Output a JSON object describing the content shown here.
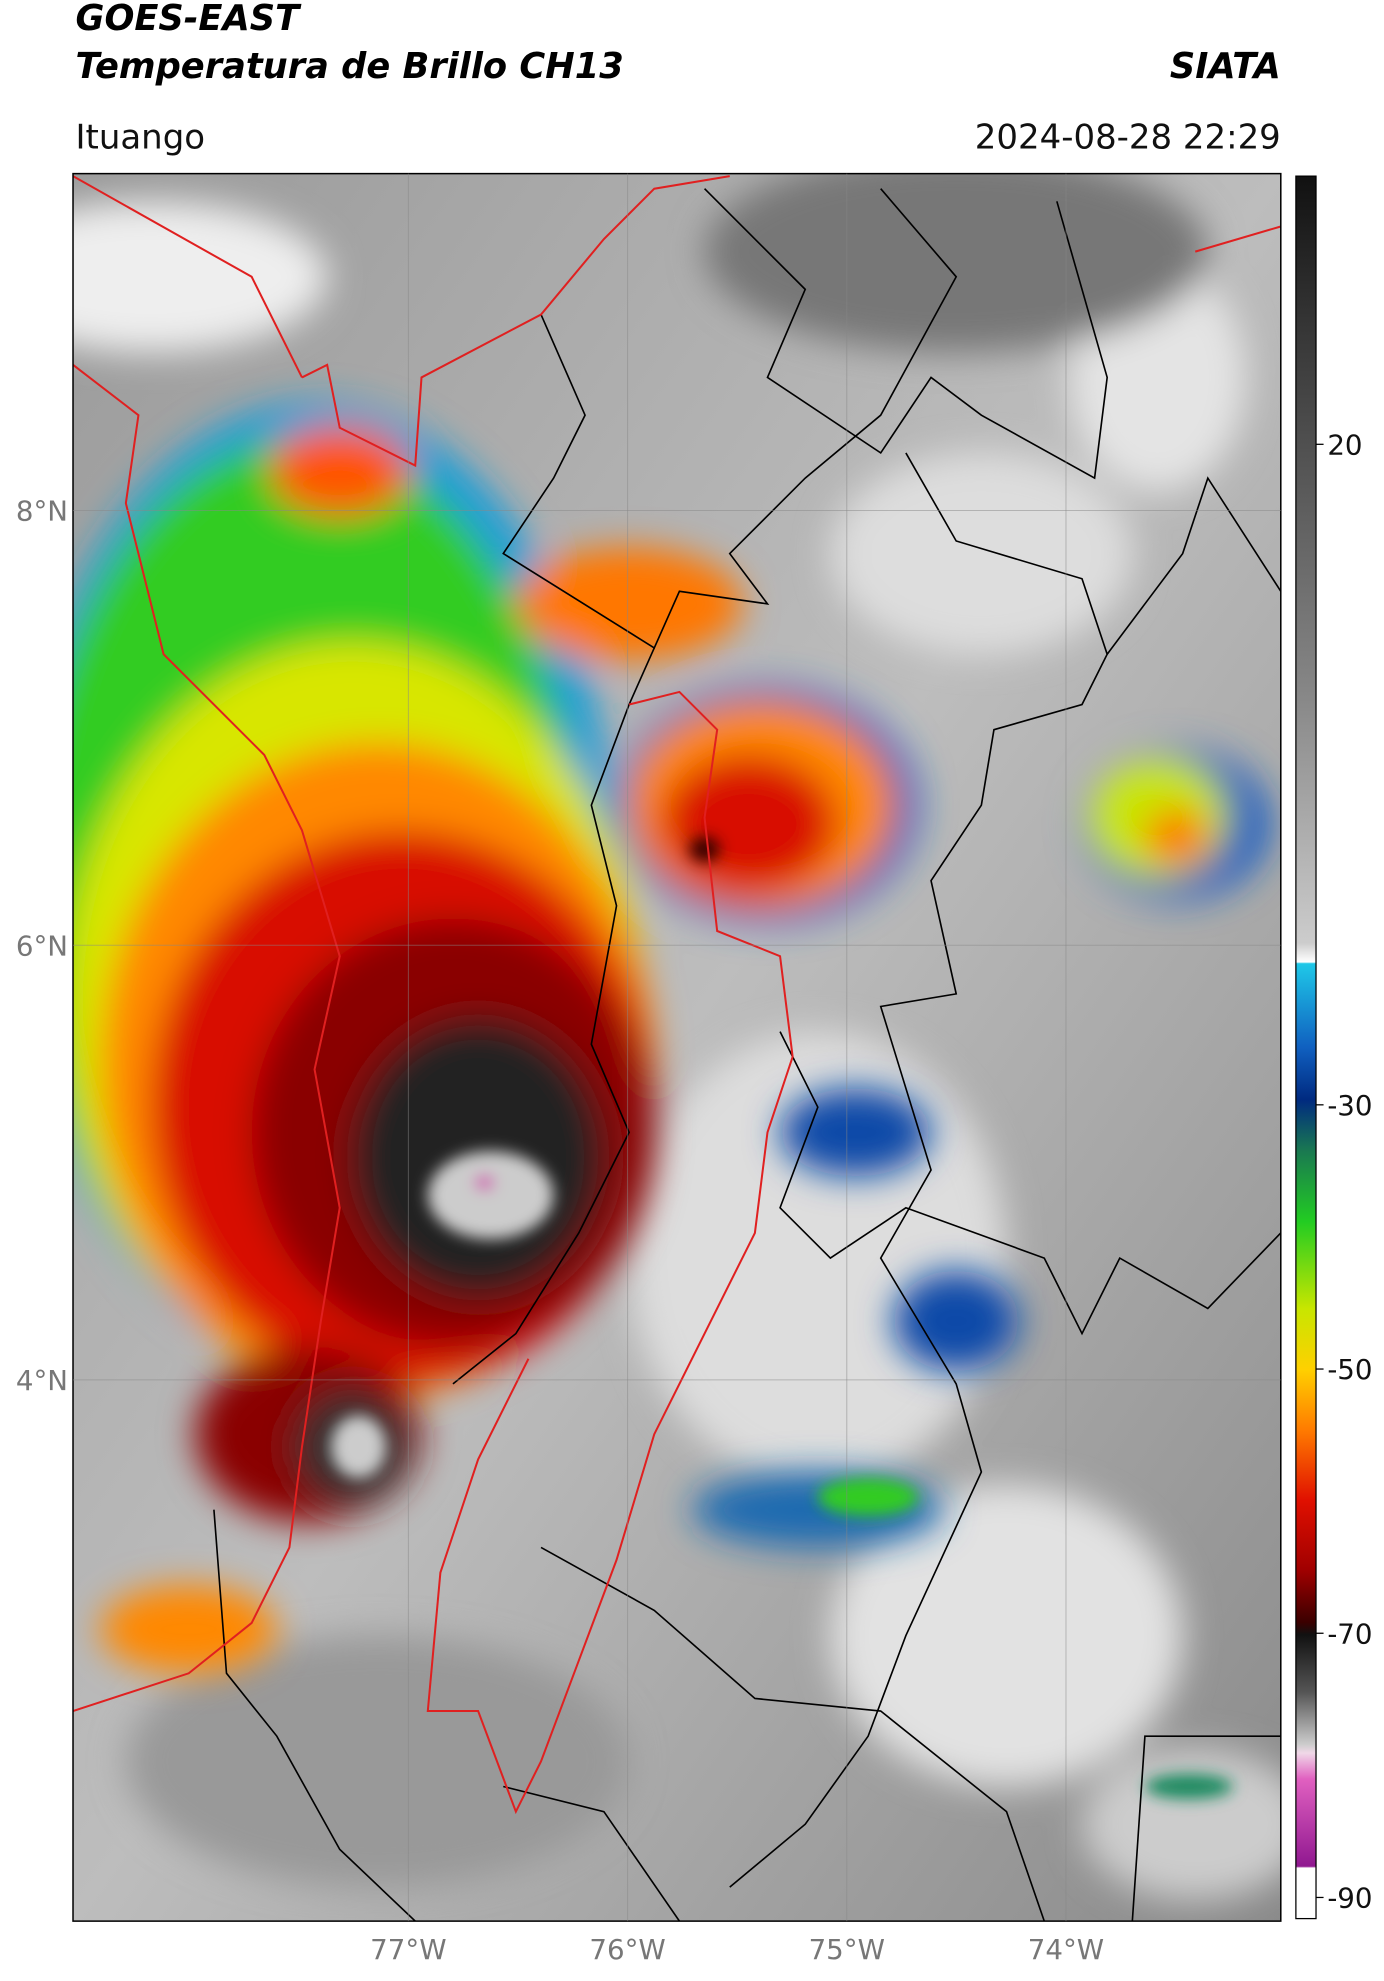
{
  "header": {
    "title_line1": "GOES-EAST",
    "title_line2": "Temperatura de Brillo CH13",
    "source": "SIATA",
    "location": "Ituango",
    "datetime": "2024-08-28 22:29"
  },
  "map": {
    "lon_range": [
      -78.53,
      -73.02
    ],
    "lat_range": [
      1.51,
      9.55
    ],
    "lat_ticks": [
      {
        "value": 8,
        "label": "8°N"
      },
      {
        "value": 6,
        "label": "6°N"
      },
      {
        "value": 4,
        "label": "4°N"
      }
    ],
    "lon_ticks": [
      {
        "value": -77,
        "label": "77°W"
      },
      {
        "value": -76,
        "label": "76°W"
      },
      {
        "value": -75,
        "label": "75°W"
      },
      {
        "value": -74,
        "label": "74°W"
      }
    ]
  },
  "colorbar": {
    "range": [
      -91.6,
      40.3
    ],
    "ticks": [
      20,
      -30,
      -50,
      -70,
      -90
    ]
  }
}
